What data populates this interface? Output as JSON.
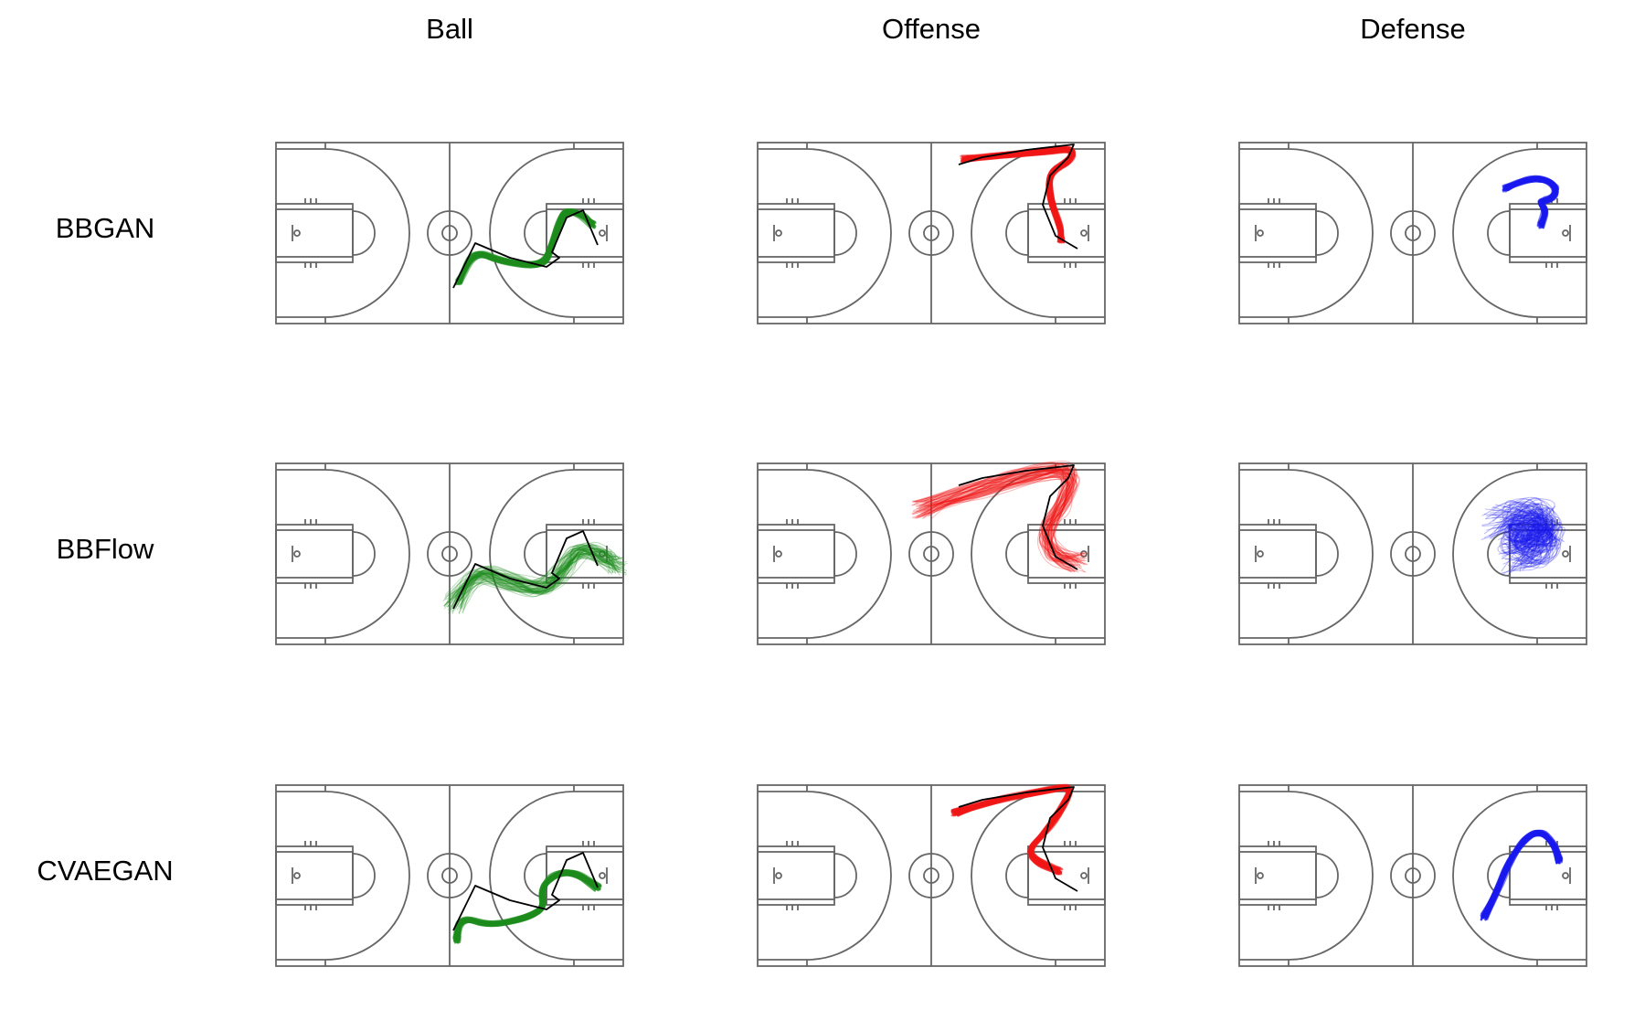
{
  "columns": [
    "Ball",
    "Offense",
    "Defense"
  ],
  "rows": [
    "BBGAN",
    "BBFlow",
    "CVAEGAN"
  ],
  "colors": {
    "ball": "#1e8c1e",
    "offense": "#f01818",
    "defense": "#1a1aee",
    "ground_truth": "#000000",
    "court_lines": "#666666"
  }
}
